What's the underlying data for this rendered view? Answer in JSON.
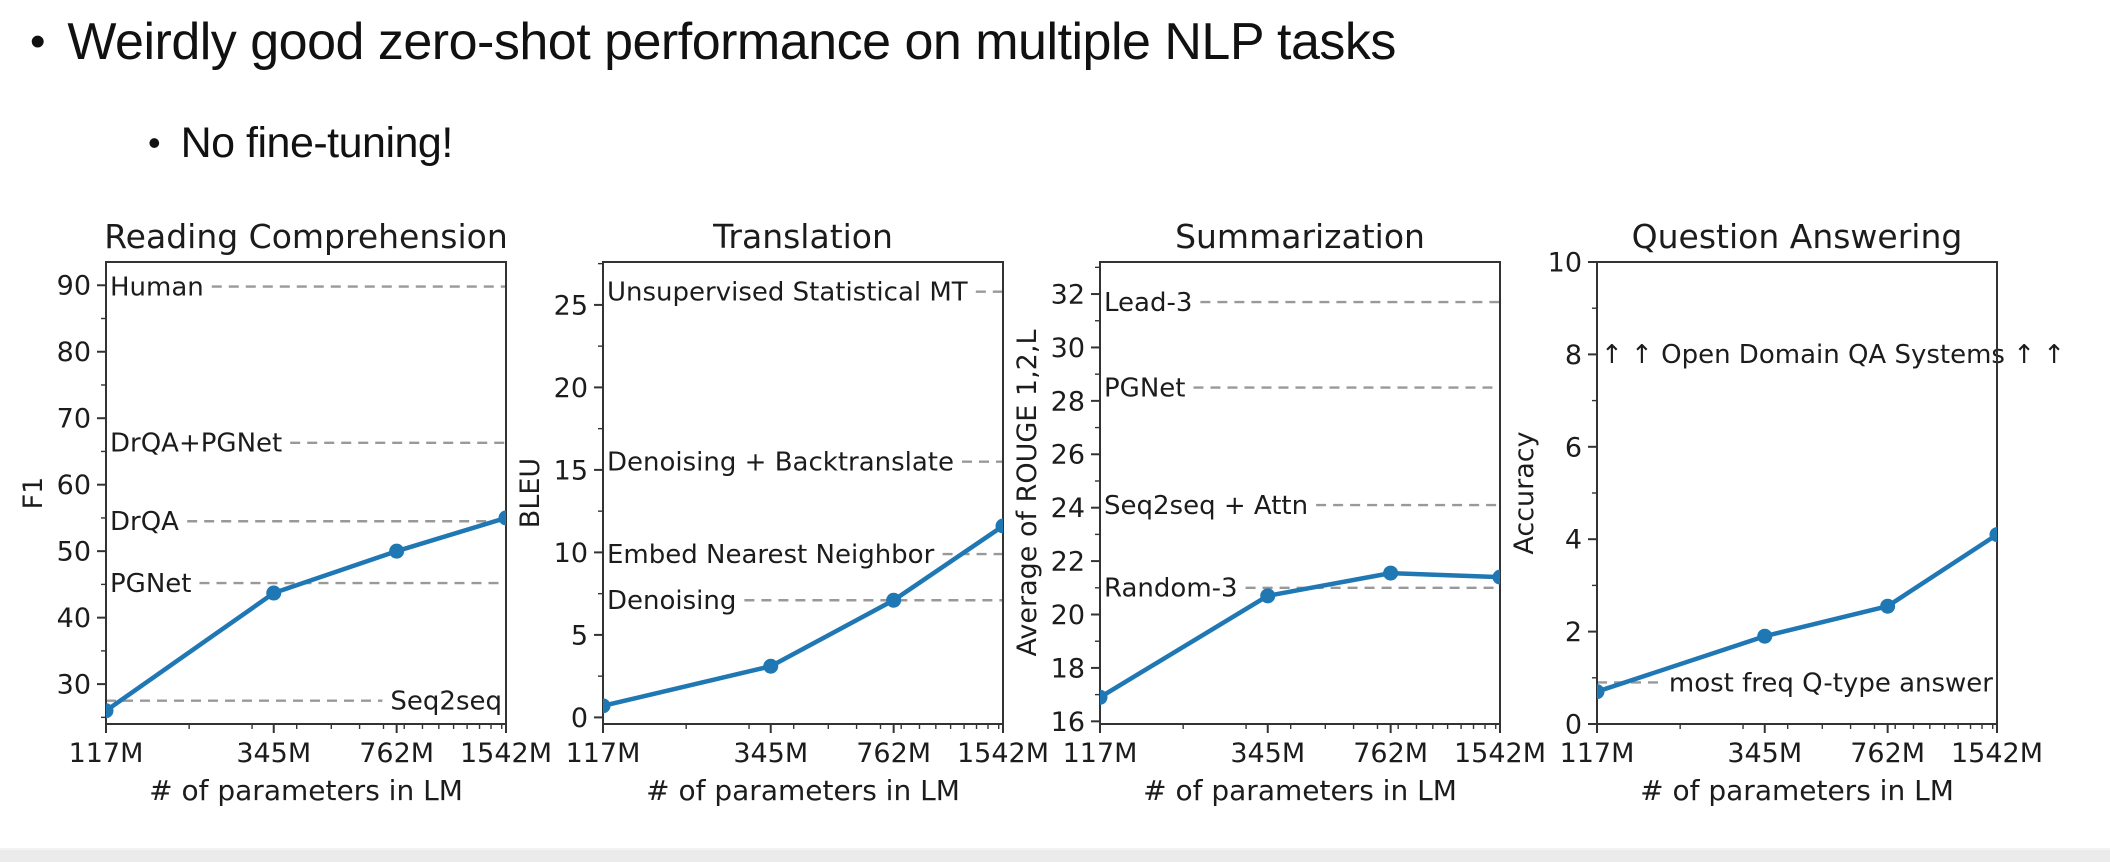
{
  "slide": {
    "bullet": "•",
    "title": "Weirdly good zero-shot performance on multiple NLP tasks",
    "subtitle": "No fine-tuning!"
  },
  "colors": {
    "line": "#1f77b4",
    "marker": "#1f77b4",
    "baseline_dash": "#999999",
    "spine": "#333333",
    "text": "#1c1c1c"
  },
  "x_axis": {
    "label": "# of parameters in LM",
    "scale": "log",
    "tick_values": [
      117,
      345,
      762,
      1542
    ],
    "tick_labels": [
      "117M",
      "345M",
      "762M",
      "1542M"
    ],
    "minor_tick_values": [
      200,
      300,
      400,
      500,
      600,
      700,
      800,
      900,
      1000,
      1100,
      1200,
      1300,
      1400,
      1500
    ]
  },
  "chart_data": [
    {
      "type": "line",
      "title": "Reading Comprehension",
      "ylabel": "F1",
      "xlabel": "# of parameters in LM",
      "x": [
        117,
        345,
        762,
        1542
      ],
      "x_labels": [
        "117M",
        "345M",
        "762M",
        "1542M"
      ],
      "values": [
        26.0,
        43.7,
        50.0,
        55.0
      ],
      "ylim": [
        24.0,
        93.5
      ],
      "yticks": [
        30,
        40,
        50,
        60,
        70,
        80,
        90
      ],
      "baselines": [
        {
          "label": "Human",
          "value": 89.8,
          "side": "left",
          "line": true
        },
        {
          "label": "DrQA+PGNet",
          "value": 66.3,
          "side": "left",
          "line": true
        },
        {
          "label": "DrQA",
          "value": 54.5,
          "side": "left",
          "line": true
        },
        {
          "label": "PGNet",
          "value": 45.2,
          "side": "left",
          "line": true
        },
        {
          "label": "Seq2seq",
          "value": 27.5,
          "side": "right",
          "line": true
        }
      ]
    },
    {
      "type": "line",
      "title": "Translation",
      "ylabel": "BLEU",
      "xlabel": "# of parameters in LM",
      "x": [
        117,
        345,
        762,
        1542
      ],
      "x_labels": [
        "117M",
        "345M",
        "762M",
        "1542M"
      ],
      "values": [
        0.7,
        3.1,
        7.1,
        11.6
      ],
      "ylim": [
        -0.4,
        27.6
      ],
      "yticks": [
        0,
        5,
        10,
        15,
        20,
        25
      ],
      "baselines": [
        {
          "label": "Unsupervised Statistical MT",
          "value": 25.8,
          "side": "left",
          "line": true
        },
        {
          "label": "Denoising + Backtranslate",
          "value": 15.5,
          "side": "left",
          "line": true
        },
        {
          "label": "Embed Nearest Neighbor",
          "value": 9.9,
          "side": "left",
          "line": true
        },
        {
          "label": "Denoising",
          "value": 7.1,
          "side": "left",
          "line": true
        }
      ]
    },
    {
      "type": "line",
      "title": "Summarization",
      "ylabel": "Average of ROUGE 1,2,L",
      "xlabel": "# of parameters in LM",
      "x": [
        117,
        345,
        762,
        1542
      ],
      "x_labels": [
        "117M",
        "345M",
        "762M",
        "1542M"
      ],
      "values": [
        16.9,
        20.7,
        21.55,
        21.4
      ],
      "ylim": [
        15.9,
        33.2
      ],
      "yticks": [
        16,
        18,
        20,
        22,
        24,
        26,
        28,
        30,
        32
      ],
      "baselines": [
        {
          "label": "Lead-3",
          "value": 31.7,
          "side": "left",
          "line": true
        },
        {
          "label": "PGNet",
          "value": 28.5,
          "side": "left",
          "line": true
        },
        {
          "label": "Seq2seq + Attn",
          "value": 24.1,
          "side": "left",
          "line": true
        },
        {
          "label": "Random-3",
          "value": 21.0,
          "side": "left",
          "line": true
        }
      ]
    },
    {
      "type": "line",
      "title": "Question Answering",
      "ylabel": "Accuracy",
      "xlabel": "# of parameters in LM",
      "x": [
        117,
        345,
        762,
        1542
      ],
      "x_labels": [
        "117M",
        "345M",
        "762M",
        "1542M"
      ],
      "values": [
        0.7,
        1.9,
        2.55,
        4.1
      ],
      "ylim": [
        0,
        10
      ],
      "yticks": [
        0,
        2,
        4,
        6,
        8,
        10
      ],
      "baselines": [
        {
          "label": "↑ ↑ Open Domain QA Systems ↑ ↑",
          "value": 8.0,
          "side": "left",
          "line": false
        },
        {
          "label": "most freq Q-type answer",
          "value": 0.9,
          "side": "right",
          "line": true
        }
      ]
    }
  ]
}
